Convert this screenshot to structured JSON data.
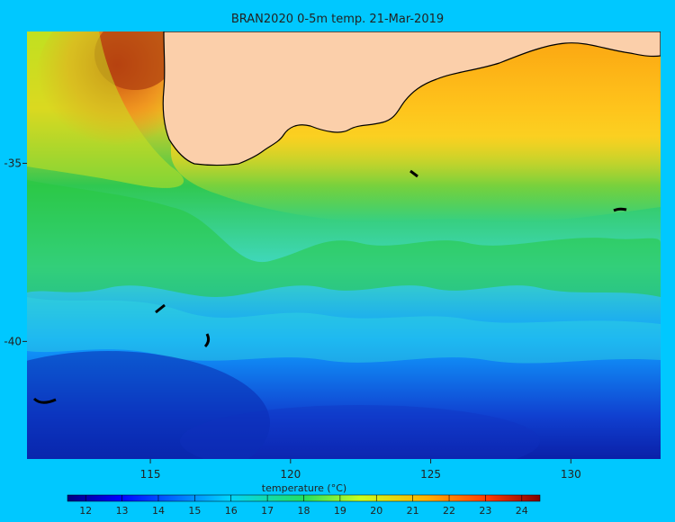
{
  "title": "BRAN2020 0-5m temp. 21-Mar-2019",
  "map": {
    "lon_range": [
      110.6,
      133.2
    ],
    "lat_range": [
      -43.3,
      -31.3
    ],
    "x_ticks": [
      {
        "value": 115,
        "label": "115"
      },
      {
        "value": 120,
        "label": "120"
      },
      {
        "value": 125,
        "label": "125"
      },
      {
        "value": 130,
        "label": "130"
      }
    ],
    "y_ticks": [
      {
        "value": -35,
        "label": "-35"
      },
      {
        "value": -40,
        "label": "-40"
      }
    ],
    "land_color": "#fbcfaa",
    "coast_color": "#000000",
    "background_color": "#00c8ff"
  },
  "colorbar": {
    "title": "temperature (°C)",
    "range": [
      11.5,
      24.5
    ],
    "ticks": [
      {
        "value": 12,
        "label": "12"
      },
      {
        "value": 13,
        "label": "13"
      },
      {
        "value": 14,
        "label": "14"
      },
      {
        "value": 15,
        "label": "15"
      },
      {
        "value": 16,
        "label": "16"
      },
      {
        "value": 17,
        "label": "17"
      },
      {
        "value": 18,
        "label": "18"
      },
      {
        "value": 19,
        "label": "19"
      },
      {
        "value": 20,
        "label": "20"
      },
      {
        "value": 21,
        "label": "21"
      },
      {
        "value": 22,
        "label": "22"
      },
      {
        "value": 23,
        "label": "23"
      },
      {
        "value": 24,
        "label": "24"
      }
    ],
    "colormap": "jet"
  }
}
